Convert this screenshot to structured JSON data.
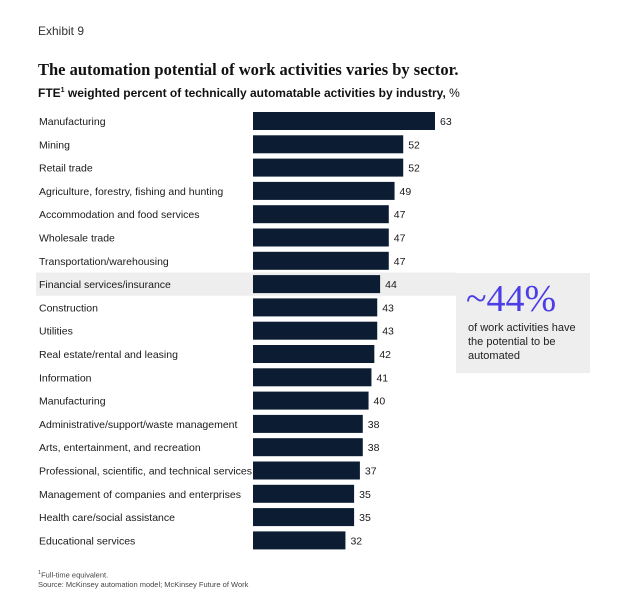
{
  "exhibit": "Exhibit 9",
  "colors": {
    "bar": "#0b1c33",
    "highlight": "#eeeeee",
    "accent": "#4b3ee6"
  },
  "callout": {
    "value": "~44%",
    "text": "of work activities have the potential to be automated"
  },
  "footnote": {
    "mark": "1",
    "line1": "Full-time equivalent.",
    "line2": "Source: McKinsey automation model; McKinsey Future of Work"
  },
  "chart_data": {
    "type": "bar",
    "orientation": "horizontal",
    "title": "The automation potential of work activities varies by sector.",
    "subtitle": "FTE",
    "subtitle_mark": "1",
    "subtitle_rest": " weighted percent of technically automatable activities by industry,",
    "subtitle_unit": " %",
    "xlim": [
      0,
      63
    ],
    "highlight_category": "Financial services/insurance",
    "categories": [
      "Manufacturing",
      "Mining",
      "Retail trade",
      "Agriculture, forestry, fishing and hunting",
      "Accommodation and food services",
      "Wholesale trade",
      "Transportation/warehousing",
      "Financial services/insurance",
      "Construction",
      "Utilities",
      "Real estate/rental and leasing",
      "Information",
      "Manufacturing",
      "Administrative/support/waste management",
      "Arts, entertainment, and recreation",
      "Professional, scientific, and technical services",
      "Management of companies and enterprises",
      "Health care/social assistance",
      "Educational services"
    ],
    "values": [
      63,
      52,
      52,
      49,
      47,
      47,
      47,
      44,
      43,
      43,
      42,
      41,
      40,
      38,
      38,
      37,
      35,
      35,
      32
    ]
  }
}
